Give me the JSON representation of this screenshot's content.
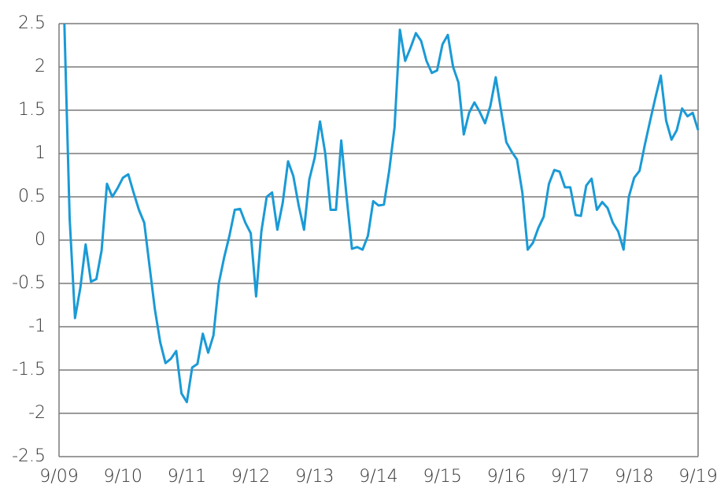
{
  "chart_data": {
    "type": "line",
    "categories": [
      "9/09",
      null,
      null,
      null,
      null,
      null,
      null,
      null,
      null,
      null,
      null,
      null,
      "9/10",
      null,
      null,
      null,
      null,
      null,
      null,
      null,
      null,
      null,
      null,
      null,
      "9/11",
      null,
      null,
      null,
      null,
      null,
      null,
      null,
      null,
      null,
      null,
      null,
      "9/12",
      null,
      null,
      null,
      null,
      null,
      null,
      null,
      null,
      null,
      null,
      null,
      "9/13",
      null,
      null,
      null,
      null,
      null,
      null,
      null,
      null,
      null,
      null,
      null,
      "9/14",
      null,
      null,
      null,
      null,
      null,
      null,
      null,
      null,
      null,
      null,
      null,
      "9/15",
      null,
      null,
      null,
      null,
      null,
      null,
      null,
      null,
      null,
      null,
      null,
      "9/16",
      null,
      null,
      null,
      null,
      null,
      null,
      null,
      null,
      null,
      null,
      null,
      "9/17",
      null,
      null,
      null,
      null,
      null,
      null,
      null,
      null,
      null,
      null,
      null,
      "9/18",
      null,
      null,
      null,
      null,
      null,
      null,
      null,
      null,
      null,
      null,
      null,
      "9/19"
    ],
    "series": [
      {
        "color": "#1a9ad6",
        "values": [
          null,
          2.5,
          0.25,
          -0.9,
          -0.55,
          -0.05,
          -0.48,
          -0.45,
          -0.12,
          0.65,
          0.5,
          0.6,
          0.72,
          0.76,
          0.55,
          0.35,
          0.2,
          -0.3,
          -0.8,
          -1.18,
          -1.42,
          -1.37,
          -1.28,
          -1.77,
          -1.87,
          -1.47,
          -1.43,
          -1.08,
          -1.3,
          -1.1,
          -0.5,
          -0.2,
          0.05,
          0.35,
          0.36,
          0.2,
          0.08,
          -0.65,
          0.1,
          0.5,
          0.55,
          0.12,
          0.43,
          0.91,
          0.74,
          0.4,
          0.12,
          0.7,
          0.95,
          1.37,
          1.0,
          0.35,
          0.35,
          1.15,
          0.5,
          -0.1,
          -0.08,
          -0.11,
          0.05,
          0.45,
          0.4,
          0.41,
          0.8,
          1.3,
          2.43,
          2.07,
          2.22,
          2.39,
          2.3,
          2.07,
          1.93,
          1.96,
          2.26,
          2.37,
          2.0,
          1.82,
          1.22,
          1.47,
          1.59,
          1.48,
          1.35,
          1.55,
          1.88,
          1.5,
          1.13,
          1.02,
          0.93,
          0.55,
          -0.11,
          -0.03,
          0.14,
          0.27,
          0.65,
          0.81,
          0.79,
          0.61,
          0.61,
          0.29,
          0.28,
          0.63,
          0.71,
          0.35,
          0.44,
          0.37,
          0.2,
          0.1,
          -0.11,
          0.5,
          0.72,
          0.8,
          1.1,
          1.38,
          1.65,
          1.9,
          1.38,
          1.16,
          1.27,
          1.52,
          1.43,
          1.47,
          1.27
        ]
      }
    ],
    "ylim": [
      -2.5,
      2.5
    ],
    "yticks": [
      2.5,
      2,
      1.5,
      1,
      0.5,
      0,
      -0.5,
      -1,
      -1.5,
      -2,
      -2.5
    ],
    "grid": true
  }
}
